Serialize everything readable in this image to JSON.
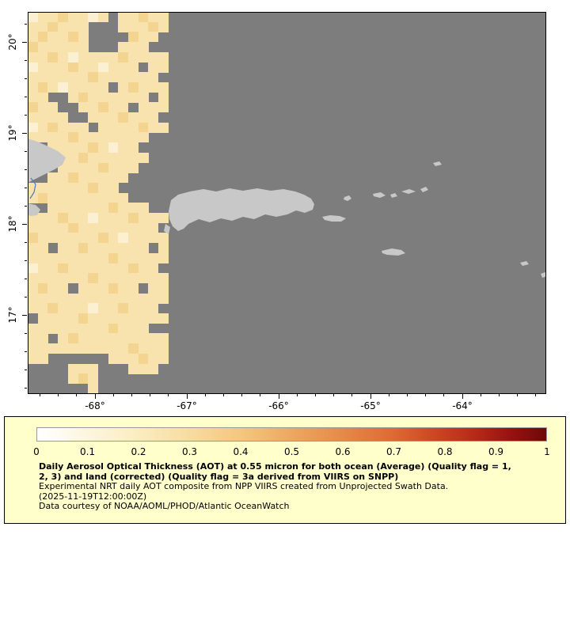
{
  "map": {
    "ocean_color": "#7d7d7d",
    "land_color": "#c8c8c8",
    "coast_color": "#4a7ebb",
    "lat_tick_labels": [
      "20°",
      "19°",
      "18°",
      "17°"
    ],
    "lat_tick_values": [
      20,
      19,
      18,
      17
    ],
    "lon_tick_labels": [
      "-68°",
      "-67°",
      "-66°",
      "-65°",
      "-64°"
    ],
    "lon_tick_values": [
      -68,
      -67,
      -66,
      -65,
      -64
    ],
    "aot_palette": {
      "a": "#fcf0d2",
      "b": "#f8e2ae",
      "c": "#f3d591"
    },
    "aot_rows": [
      "abbcbbab.bbcbb",
      "bbcbbb...bbbcb",
      "bcbbcb....cbb.",
      "cbbbbb...bbb..",
      "bbcbabbbbcbbbb",
      "abbbcbbabbb.bb",
      "bbbbbbcbbbbbb.",
      "bcbabbbb.bcbbb",
      "bb..bcbbbbbb.b",
      "cbb..bbcbb.bbb",
      "bbbb..bbbcbbb.",
      "abcbbb.bbbbcbb",
      "bbbbcbbbbbbb..",
      "..bbbbcbabb...",
      "...bbcbbbbbb..",
      "...bbbbcbbb...",
      "..bbcbbbbb....",
      "bbbbbbcbb.....",
      "bcbbbbbbbb....",
      "..bbbbbbcbbb..",
      "bbbcbbabbbcbbb",
      "bbbbcbbbbbbbb.",
      "cbbbbbbcbabbbb",
      "bb.bbcbbbbbb.b",
      "bbbbbbbbcbbbbb",
      "abbcbbbbbbcbb.",
      "bbbbbbcbbbbbbb",
      "bcbb.bbbcbb.bb",
      "bbbbbbbbbbbbbb",
      "bbcbbbabbcbbb.",
      ".bbbbcbbbbbbbb",
      "bbbbbbbbcbbb..",
      "bb.bcbbbbbbbbb",
      "bbbbbbbbbbcbbb",
      "bb......bbbcbb",
      "....bbb...bbb.",
      "....bcb.......",
      "......b......."
    ]
  },
  "legend": {
    "background": "#ffffcc",
    "colorbar": {
      "tick_labels": [
        "0",
        "0.1",
        "0.2",
        "0.3",
        "0.4",
        "0.5",
        "0.6",
        "0.7",
        "0.8",
        "0.9",
        "1"
      ],
      "stops": [
        {
          "p": 0.0,
          "c": "#ffffff"
        },
        {
          "p": 0.08,
          "c": "#fdf8e4"
        },
        {
          "p": 0.2,
          "c": "#fbecc0"
        },
        {
          "p": 0.3,
          "c": "#f7dca0"
        },
        {
          "p": 0.4,
          "c": "#f3c77e"
        },
        {
          "p": 0.5,
          "c": "#eda860"
        },
        {
          "p": 0.6,
          "c": "#e68a48"
        },
        {
          "p": 0.7,
          "c": "#dd6a33"
        },
        {
          "p": 0.78,
          "c": "#cc4722"
        },
        {
          "p": 0.86,
          "c": "#b52a18"
        },
        {
          "p": 0.93,
          "c": "#971212"
        },
        {
          "p": 1.0,
          "c": "#6f0808"
        }
      ]
    },
    "title_lines": [
      "Daily Aerosol Optical Thickness (AOT) at 0.55 micron for both ocean (Average) (Quality flag = 1,",
      "2, 3) and land (corrected) (Quality flag = 3a derived from VIIRS on SNPP)"
    ],
    "body_lines": [
      "Experimental NRT daily AOT composite from NPP VIIRS created from Unprojected Swath Data.",
      "(2025-11-19T12:00:00Z)",
      "Data courtesy of NOAA/AOML/PHOD/Atlantic OceanWatch"
    ]
  }
}
